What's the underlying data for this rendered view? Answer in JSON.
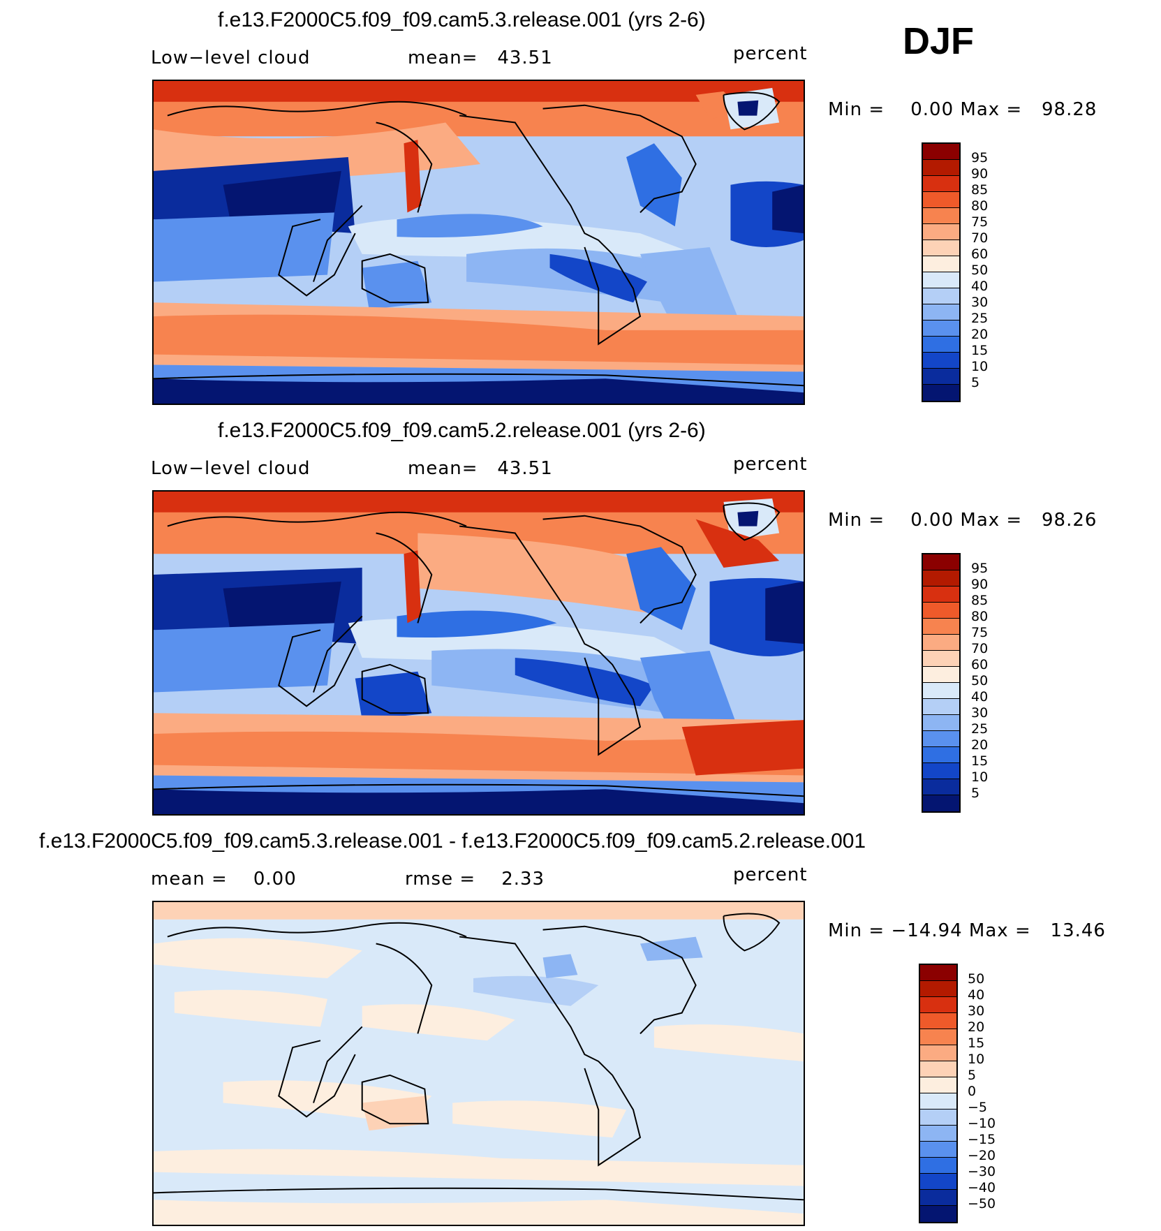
{
  "season": "DJF",
  "panels": [
    {
      "title": "f.e13.F2000C5.f09_f09.cam5.3.release.001 (yrs 2-6)",
      "left_label": "Low−level cloud",
      "center_label": "mean=   43.51",
      "right_label": "percent",
      "minmax": "Min =    0.00 Max =   98.28",
      "colorbar_levels": [
        "95",
        "90",
        "85",
        "80",
        "75",
        "70",
        "60",
        "50",
        "40",
        "30",
        "25",
        "20",
        "15",
        "10",
        "5"
      ],
      "colorbar_colors": [
        "#8b0000",
        "#b31a00",
        "#d83010",
        "#ef5a2a",
        "#f7834f",
        "#fbab82",
        "#fdd2b6",
        "#fdeedf",
        "#d9e9f9",
        "#b4cff6",
        "#8db5f3",
        "#5a91ee",
        "#2f6fe3",
        "#1346c8",
        "#0a2c9d",
        "#041571"
      ]
    },
    {
      "title": "f.e13.F2000C5.f09_f09.cam5.2.release.001 (yrs 2-6)",
      "left_label": "Low−level cloud",
      "center_label": "mean=   43.51",
      "right_label": "percent",
      "minmax": "Min =    0.00 Max =   98.26",
      "colorbar_levels": [
        "95",
        "90",
        "85",
        "80",
        "75",
        "70",
        "60",
        "50",
        "40",
        "30",
        "25",
        "20",
        "15",
        "10",
        "5"
      ],
      "colorbar_colors": [
        "#8b0000",
        "#b31a00",
        "#d83010",
        "#ef5a2a",
        "#f7834f",
        "#fbab82",
        "#fdd2b6",
        "#fdeedf",
        "#d9e9f9",
        "#b4cff6",
        "#8db5f3",
        "#5a91ee",
        "#2f6fe3",
        "#1346c8",
        "#0a2c9d",
        "#041571"
      ]
    },
    {
      "title": "f.e13.F2000C5.f09_f09.cam5.3.release.001 - f.e13.F2000C5.f09_f09.cam5.2.release.001",
      "left_label": "mean =    0.00",
      "center_label": "rmse =    2.33",
      "right_label": "percent",
      "minmax": "Min = −14.94 Max =   13.46",
      "colorbar_levels": [
        "50",
        "40",
        "30",
        "20",
        "15",
        "10",
        "5",
        "0",
        "−5",
        "−10",
        "−15",
        "−20",
        "−30",
        "−40",
        "−50"
      ],
      "colorbar_colors": [
        "#8b0000",
        "#b31a00",
        "#d83010",
        "#ef5a2a",
        "#f7834f",
        "#fbab82",
        "#fdd2b6",
        "#fdeedf",
        "#d9e9f9",
        "#b4cff6",
        "#8db5f3",
        "#5a91ee",
        "#2f6fe3",
        "#1346c8",
        "#0a2c9d",
        "#041571"
      ]
    }
  ]
}
